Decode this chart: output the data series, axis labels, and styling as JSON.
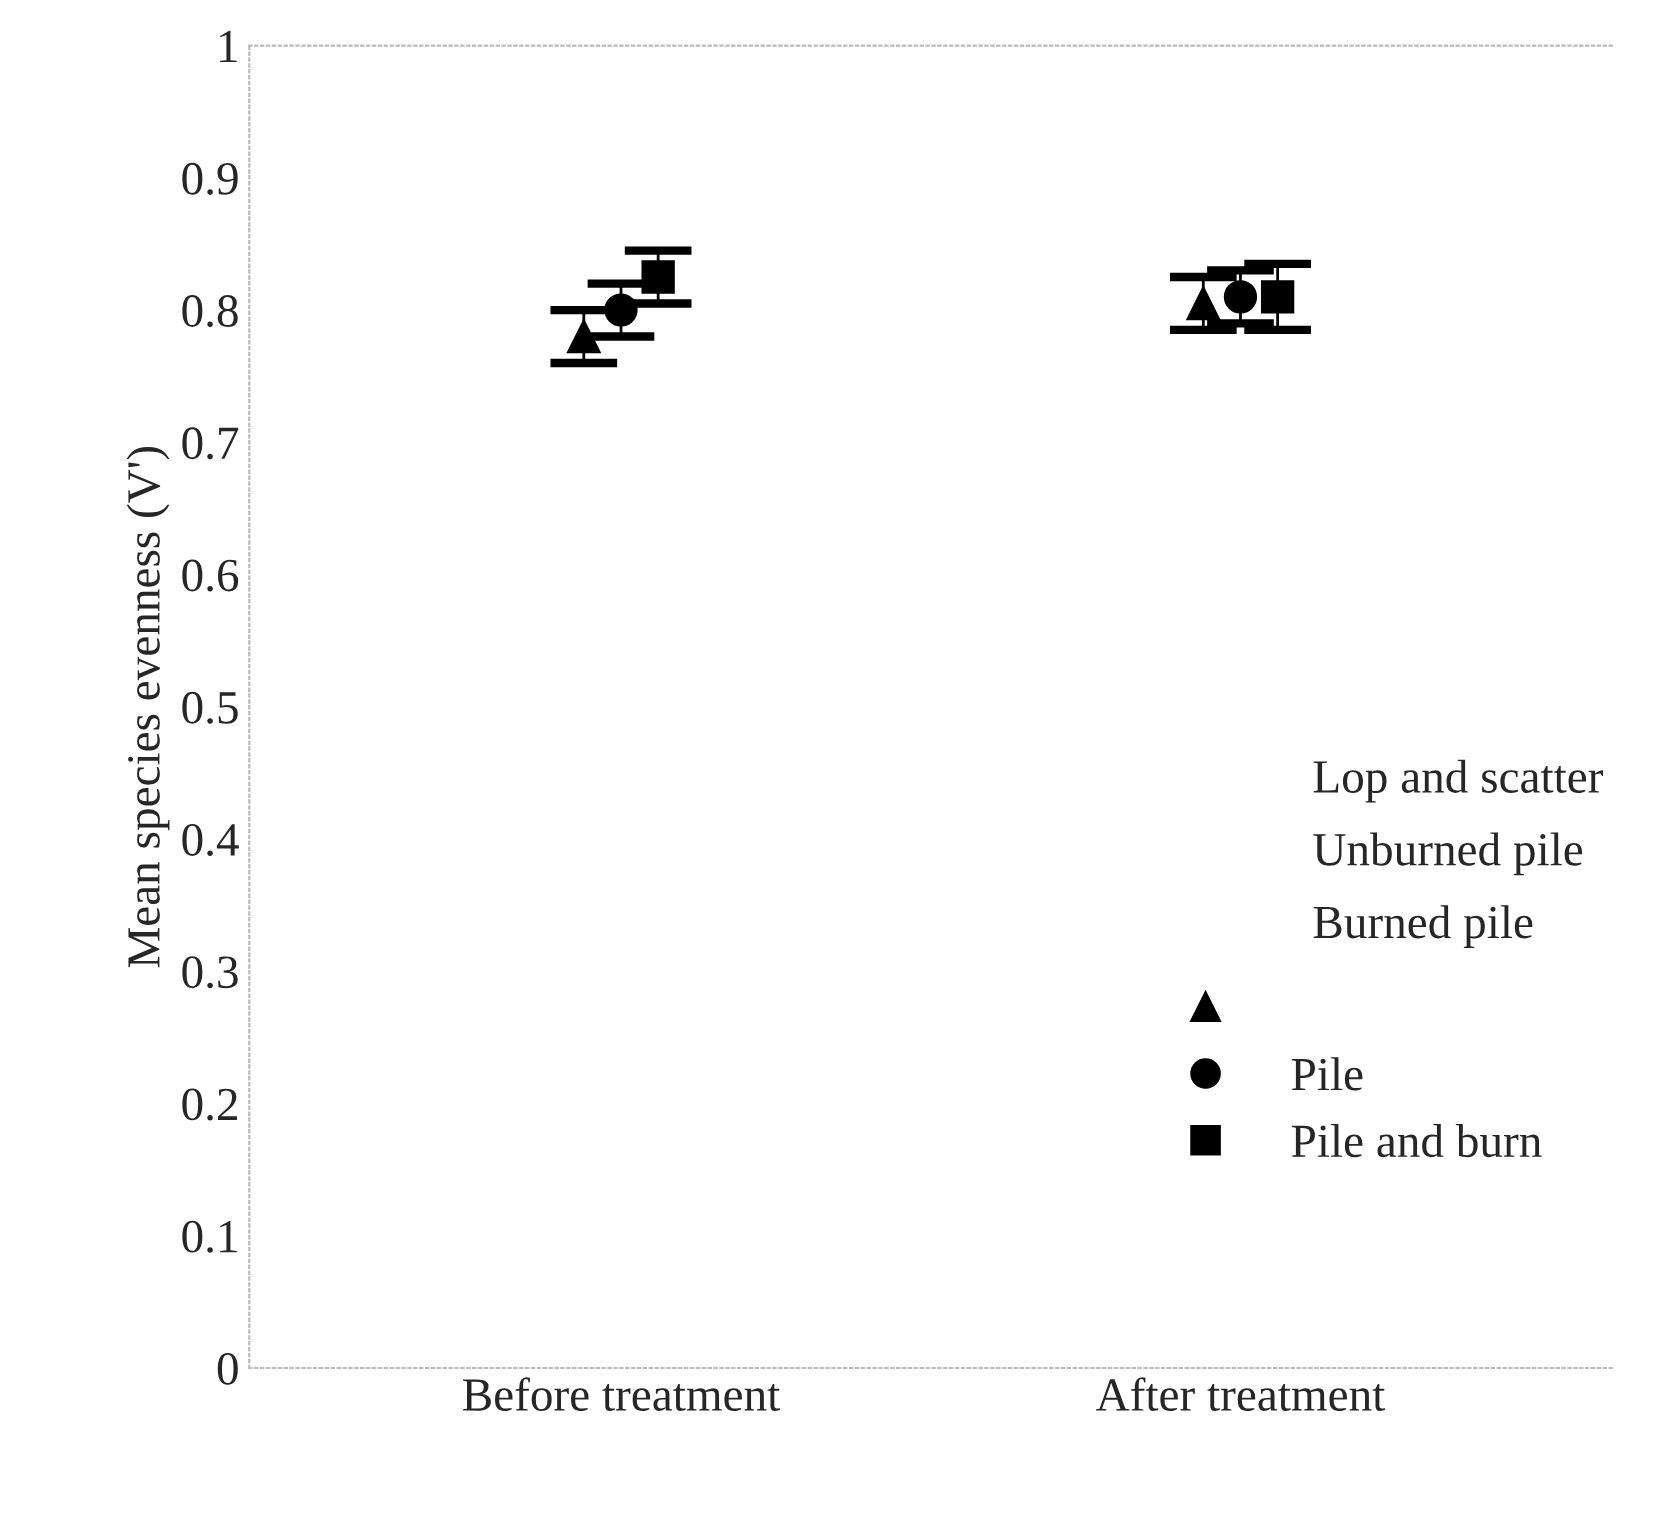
{
  "chart_data": {
    "type": "scatter",
    "ylabel": "Mean species evenness (V')",
    "categories": [
      "Before treatment",
      "After treatment"
    ],
    "series": [
      {
        "color": "#000000",
        "marker": "triangle",
        "values": [
          0.78,
          0.805
        ],
        "errors": [
          0.02,
          0.02
        ]
      },
      {
        "name": "Pile",
        "color": "#000000",
        "marker": "circle",
        "values": [
          0.8,
          0.81
        ],
        "errors": [
          0.02,
          0.02
        ]
      },
      {
        "name": "Pile and burn",
        "color": "#000000",
        "marker": "square",
        "values": [
          0.825,
          0.81
        ],
        "errors": [
          0.02,
          0.025
        ]
      }
    ],
    "annotations": [
      "Lop and scatter",
      "Unburned pile",
      "Burned pile"
    ],
    "ylim": [
      0,
      1
    ],
    "yticks": [
      0,
      0.1,
      0.2,
      0.3,
      0.4,
      0.5,
      0.6,
      0.7,
      0.8,
      0.9,
      1
    ],
    "grid": false,
    "legend": "bottom right"
  }
}
